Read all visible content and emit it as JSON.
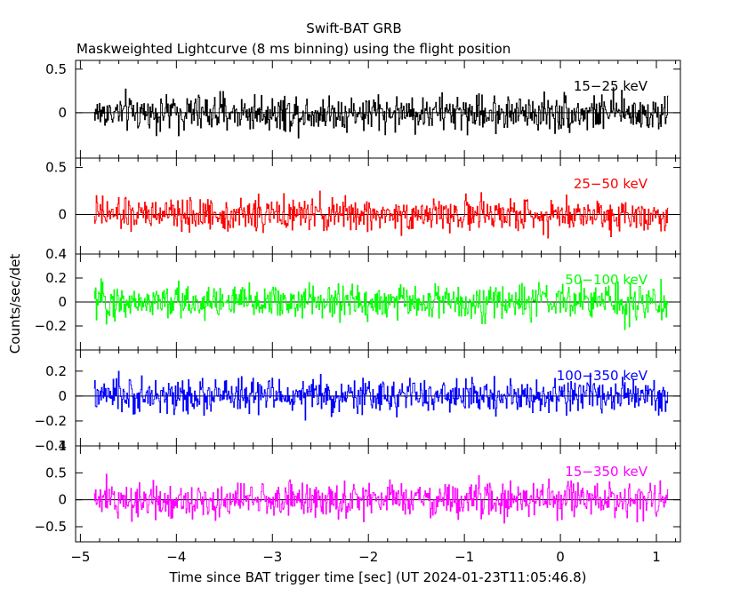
{
  "title": "Swift-BAT GRB",
  "subtitle": "Maskweighted Lightcurve (8 ms binning) using the flight position",
  "ylabel": "Counts/sec/det",
  "xlabel": "Time since BAT trigger time [sec] (UT 2024-01-23T11:05:46.8)",
  "chart_data": {
    "type": "line",
    "x_range": [
      -5.05,
      1.25
    ],
    "x_ticks": [
      -5,
      -4,
      -3,
      -2,
      -1,
      0,
      1
    ],
    "x_tick_labels": [
      "−5",
      "−4",
      "−3",
      "−2",
      "−1",
      "0",
      "1"
    ],
    "bin_width_s": 0.008,
    "data_x_range": [
      -4.86,
      1.12
    ],
    "panels": [
      {
        "name": "15−25 keV",
        "color": "#000000",
        "ylim": [
          -0.52,
          0.6
        ],
        "y_ticks": [
          0.5,
          0
        ],
        "y_tick_labels": [
          "0.5",
          "0"
        ],
        "noise_amplitude": 0.17
      },
      {
        "name": "25−50 keV",
        "color": "#ff0000",
        "ylim": [
          -0.42,
          0.6
        ],
        "y_ticks": [
          0.5,
          0
        ],
        "y_tick_labels": [
          "0.5",
          "0"
        ],
        "noise_amplitude": 0.14
      },
      {
        "name": "50−100 keV",
        "color": "#00ff00",
        "ylim": [
          -0.4,
          0.4
        ],
        "y_ticks": [
          0.4,
          0.2,
          0,
          -0.2
        ],
        "y_tick_labels": [
          "0.4",
          "0.2",
          "0",
          "−0.2"
        ],
        "noise_amplitude": 0.12
      },
      {
        "name": "100−350 keV",
        "color": "#0000ff",
        "ylim": [
          -0.4,
          0.37
        ],
        "y_ticks": [
          0.2,
          0,
          -0.2,
          -0.4
        ],
        "y_tick_labels": [
          "0.2",
          "0",
          "−0.2",
          "−0.4"
        ],
        "noise_amplitude": 0.11
      },
      {
        "name": "15−350 keV",
        "color": "#ff00ff",
        "ylim": [
          -0.78,
          1.0
        ],
        "y_ticks": [
          1,
          0.5,
          0,
          -0.5
        ],
        "y_tick_labels": [
          "1",
          "0.5",
          "0",
          "−0.5"
        ],
        "noise_amplitude": 0.27
      }
    ]
  }
}
